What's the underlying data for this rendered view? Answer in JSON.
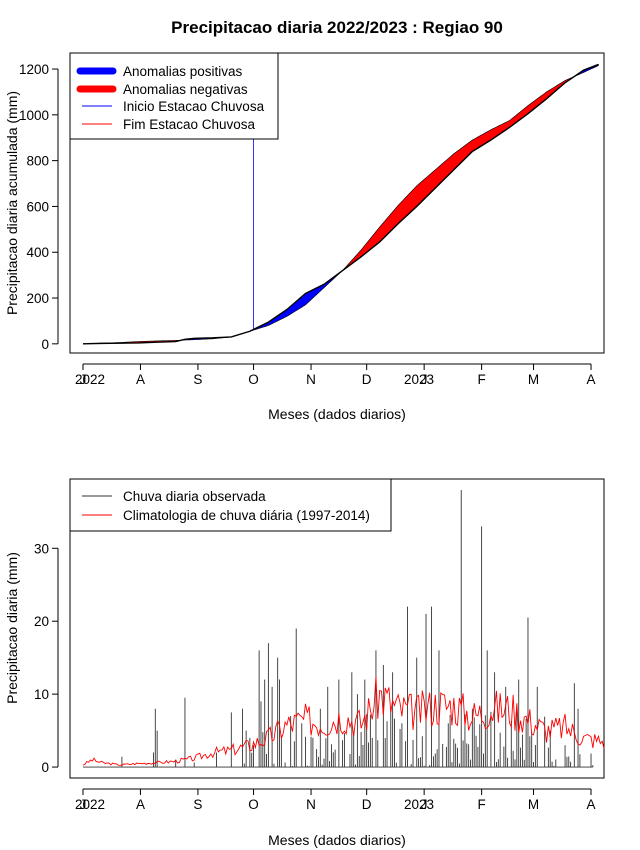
{
  "title": "Precipitacao diaria 2022/2023 : Regiao 90",
  "colors": {
    "positive": "#0000ff",
    "negative": "#ff0000",
    "observed": "#333333",
    "onset": "#0000ff",
    "end": "#ff0000",
    "climatology": "#ff0000"
  },
  "chart_data": [
    {
      "type": "area",
      "ylabel": "Precipitacao diaria acumulada (mm)",
      "xlabel": "Meses (dados diarios)",
      "x_tick_labels": [
        "J",
        "A",
        "S",
        "O",
        "N",
        "D",
        "J",
        "F",
        "M",
        "A"
      ],
      "year_labels": [
        "2022",
        "2023"
      ],
      "y_ticks": [
        0,
        200,
        400,
        600,
        800,
        1000,
        1200
      ],
      "ylim": [
        -40,
        1270
      ],
      "xlim_days": [
        -7,
        281
      ],
      "onset_day": 92,
      "legend": {
        "placement": "top-left",
        "entries": [
          "Anomalias positivas",
          "Anomalias negativas",
          "Inicio Estacao Chuvosa",
          "Fim Estacao Chuvosa"
        ]
      },
      "observed_cumulative": [
        [
          0,
          0
        ],
        [
          10,
          2
        ],
        [
          20,
          3
        ],
        [
          30,
          4
        ],
        [
          40,
          7
        ],
        [
          50,
          10
        ],
        [
          55,
          20
        ],
        [
          60,
          24
        ],
        [
          70,
          26
        ],
        [
          80,
          30
        ],
        [
          90,
          55
        ],
        [
          100,
          95
        ],
        [
          110,
          150
        ],
        [
          120,
          220
        ],
        [
          130,
          260
        ],
        [
          140,
          320
        ],
        [
          150,
          380
        ],
        [
          160,
          445
        ],
        [
          170,
          525
        ],
        [
          180,
          600
        ],
        [
          190,
          680
        ],
        [
          200,
          760
        ],
        [
          210,
          840
        ],
        [
          220,
          890
        ],
        [
          230,
          945
        ],
        [
          240,
          1005
        ],
        [
          250,
          1070
        ],
        [
          260,
          1140
        ],
        [
          270,
          1195
        ],
        [
          278,
          1220
        ]
      ],
      "climatology_cumulative": [
        [
          0,
          0
        ],
        [
          10,
          3
        ],
        [
          20,
          6
        ],
        [
          30,
          10
        ],
        [
          40,
          13
        ],
        [
          50,
          15
        ],
        [
          60,
          18
        ],
        [
          70,
          22
        ],
        [
          80,
          30
        ],
        [
          90,
          55
        ],
        [
          100,
          80
        ],
        [
          110,
          120
        ],
        [
          120,
          170
        ],
        [
          130,
          245
        ],
        [
          140,
          320
        ],
        [
          150,
          410
        ],
        [
          160,
          510
        ],
        [
          170,
          605
        ],
        [
          180,
          690
        ],
        [
          190,
          760
        ],
        [
          200,
          830
        ],
        [
          210,
          890
        ],
        [
          220,
          935
        ],
        [
          230,
          975
        ],
        [
          240,
          1040
        ],
        [
          250,
          1100
        ],
        [
          260,
          1150
        ],
        [
          270,
          1185
        ],
        [
          278,
          1215
        ]
      ]
    },
    {
      "type": "bar",
      "ylabel": "Precipitacao diaria (mm)",
      "xlabel": "Meses (dados diarios)",
      "x_tick_labels": [
        "J",
        "A",
        "S",
        "O",
        "N",
        "D",
        "J",
        "F",
        "M",
        "A"
      ],
      "year_labels": [
        "2022",
        "2023"
      ],
      "y_ticks": [
        0,
        10,
        20,
        30
      ],
      "ylim": [
        -1.5,
        39.5
      ],
      "xlim_days": [
        -7,
        281
      ],
      "legend": {
        "placement": "top-left",
        "entries": [
          "Chuva diaria observada",
          "Climatologia de chuva diária (1997-2014)"
        ]
      },
      "observed_daily_peaks": [
        [
          38,
          2
        ],
        [
          39,
          8
        ],
        [
          40,
          5
        ],
        [
          50,
          1
        ],
        [
          55,
          9.5
        ],
        [
          72,
          2
        ],
        [
          80,
          7.5
        ],
        [
          86,
          8
        ],
        [
          88,
          5
        ],
        [
          90,
          4
        ],
        [
          92,
          3
        ],
        [
          95,
          16
        ],
        [
          96,
          9
        ],
        [
          98,
          12
        ],
        [
          100,
          17
        ],
        [
          102,
          11
        ],
        [
          105,
          15
        ],
        [
          106,
          12
        ],
        [
          112,
          7
        ],
        [
          115,
          19
        ],
        [
          118,
          6
        ],
        [
          124,
          4
        ],
        [
          128,
          8
        ],
        [
          132,
          11
        ],
        [
          138,
          12
        ],
        [
          145,
          13
        ],
        [
          148,
          10
        ],
        [
          152,
          12
        ],
        [
          158,
          16
        ],
        [
          162,
          14
        ],
        [
          167,
          13
        ],
        [
          175,
          22
        ],
        [
          180,
          15
        ],
        [
          185,
          21
        ],
        [
          188,
          22
        ],
        [
          192,
          16
        ],
        [
          197,
          6
        ],
        [
          204,
          38
        ],
        [
          210,
          8
        ],
        [
          215,
          33
        ],
        [
          218,
          16
        ],
        [
          222,
          13
        ],
        [
          228,
          11
        ],
        [
          235,
          12
        ],
        [
          240,
          20.5
        ],
        [
          245,
          11
        ],
        [
          252,
          5
        ],
        [
          260,
          3
        ],
        [
          265,
          11.5
        ],
        [
          267,
          8
        ]
      ],
      "climatology_daily": [
        [
          0,
          0.3
        ],
        [
          5,
          1
        ],
        [
          10,
          0.6
        ],
        [
          20,
          0.3
        ],
        [
          30,
          0.5
        ],
        [
          40,
          0.6
        ],
        [
          50,
          0.8
        ],
        [
          60,
          1.2
        ],
        [
          70,
          2
        ],
        [
          80,
          2.3
        ],
        [
          90,
          3
        ],
        [
          100,
          4
        ],
        [
          110,
          5.8
        ],
        [
          120,
          6.5
        ],
        [
          130,
          6
        ],
        [
          140,
          7
        ],
        [
          150,
          6
        ],
        [
          160,
          10
        ],
        [
          170,
          8
        ],
        [
          180,
          7.5
        ],
        [
          190,
          8.5
        ],
        [
          200,
          8.5
        ],
        [
          210,
          7
        ],
        [
          220,
          8
        ],
        [
          230,
          8
        ],
        [
          240,
          6.5
        ],
        [
          250,
          5
        ],
        [
          260,
          5.5
        ],
        [
          270,
          4
        ],
        [
          281,
          3.5
        ]
      ]
    }
  ]
}
